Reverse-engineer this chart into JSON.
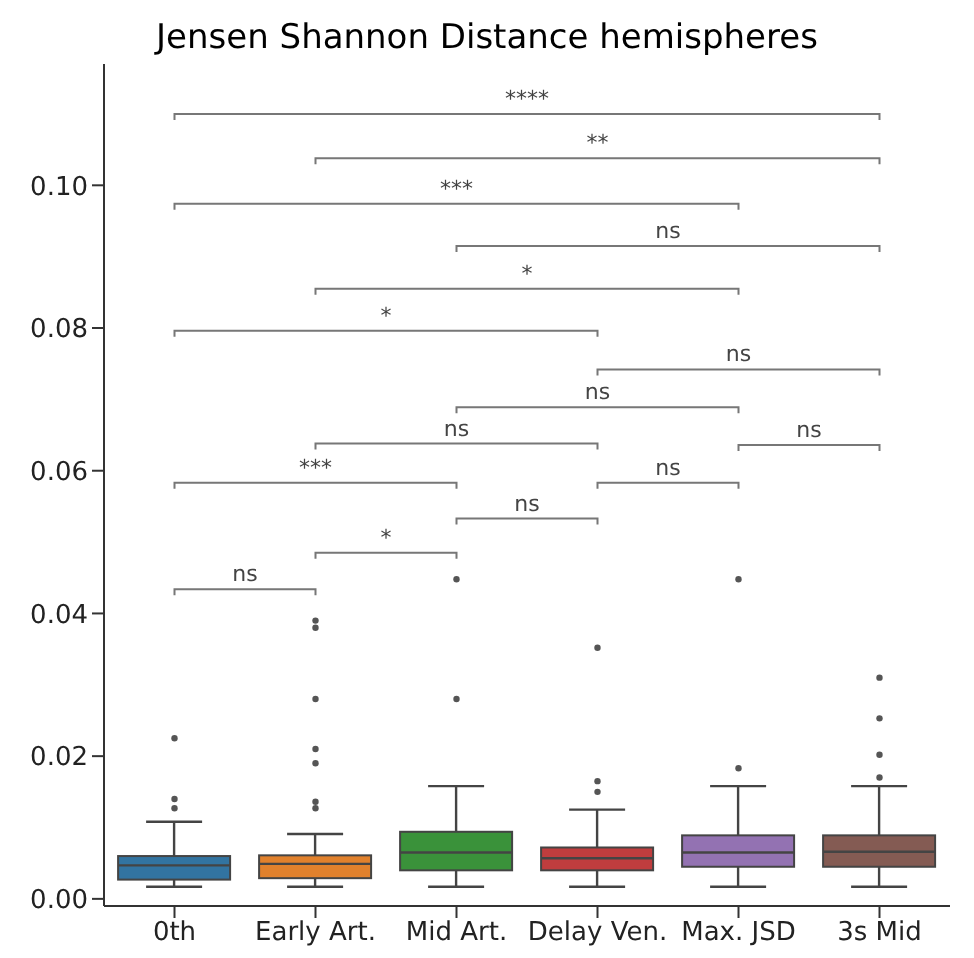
{
  "chart_data": {
    "type": "box",
    "title": "Jensen Shannon Distance hemispheres",
    "categories": [
      "0th",
      "Early Art.",
      "Mid Art.",
      "Delay Ven.",
      "Max. JSD",
      "3s Mid"
    ],
    "colors": [
      "#3274a1",
      "#e1812c",
      "#3a923a",
      "#c03d3e",
      "#9372b2",
      "#845b53"
    ],
    "boxes": [
      {
        "low": 0.0017,
        "q1": 0.0027,
        "median": 0.0047,
        "q3": 0.006,
        "high": 0.0108,
        "outliers": [
          0.0127,
          0.014,
          0.0225
        ]
      },
      {
        "low": 0.0017,
        "q1": 0.0029,
        "median": 0.0049,
        "q3": 0.0061,
        "high": 0.0091,
        "outliers": [
          0.0127,
          0.0136,
          0.019,
          0.021,
          0.028,
          0.038,
          0.039
        ]
      },
      {
        "low": 0.0017,
        "q1": 0.004,
        "median": 0.0065,
        "q3": 0.0094,
        "high": 0.0158,
        "outliers": [
          0.028,
          0.0448
        ]
      },
      {
        "low": 0.0017,
        "q1": 0.004,
        "median": 0.0057,
        "q3": 0.0072,
        "high": 0.0125,
        "outliers": [
          0.015,
          0.0165,
          0.0352
        ]
      },
      {
        "low": 0.0017,
        "q1": 0.0045,
        "median": 0.0065,
        "q3": 0.0089,
        "high": 0.0158,
        "outliers": [
          0.0183,
          0.0448
        ]
      },
      {
        "low": 0.0017,
        "q1": 0.0045,
        "median": 0.0066,
        "q3": 0.0089,
        "high": 0.0158,
        "outliers": [
          0.017,
          0.0202,
          0.0253,
          0.031
        ]
      }
    ],
    "ylim": [
      -0.001,
      0.117
    ],
    "yticks": [
      {
        "value": 0,
        "label": "0.00"
      },
      {
        "value": 0.02,
        "label": "0.02"
      },
      {
        "value": 0.04,
        "label": "0.04"
      },
      {
        "value": 0.06,
        "label": "0.06"
      },
      {
        "value": 0.08,
        "label": "0.08"
      },
      {
        "value": 0.1,
        "label": "0.10"
      }
    ],
    "annotations": [
      "****",
      "**",
      "***",
      "ns",
      "*",
      "*",
      "ns",
      "ns",
      "ns",
      "ns",
      "***",
      "ns",
      "ns",
      "*",
      "ns"
    ]
  }
}
